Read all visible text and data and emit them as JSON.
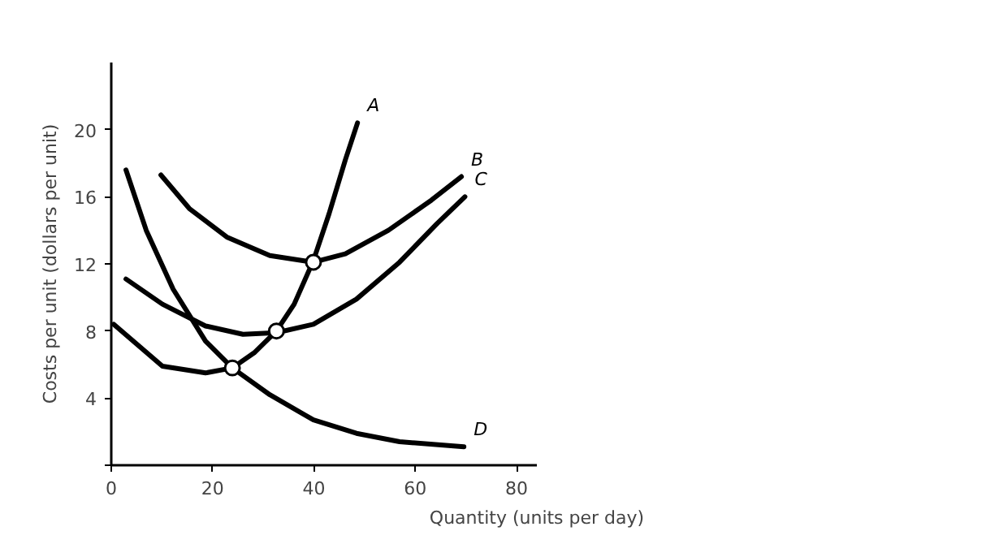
{
  "chart_data": {
    "type": "line",
    "xlabel": "Quantity (units per day)",
    "ylabel": "Costs per unit (dollars per unit)",
    "xlim": [
      0,
      84
    ],
    "ylim": [
      0,
      24
    ],
    "xticks": [
      0,
      20,
      40,
      60,
      80
    ],
    "yticks": [
      {
        "value": 0,
        "label": null
      },
      4,
      8,
      12,
      16,
      20
    ],
    "grid": false,
    "marker": "none",
    "series": [
      {
        "name": "A",
        "color": "#000000",
        "x": [
          0.5,
          10.1,
          18.6,
          23.9,
          28.2,
          32.6,
          36.1,
          39.9,
          43,
          46.2,
          48.6
        ],
        "values": [
          8.4,
          5.9,
          5.5,
          5.8,
          6.7,
          8.0,
          9.6,
          12.2,
          15,
          18.2,
          20.4
        ]
      },
      {
        "name": "B",
        "color": "#000000",
        "x": [
          9.8,
          15.4,
          22.8,
          31.3,
          39.9,
          46.2,
          54.7,
          63.2,
          69.1
        ],
        "values": [
          17.3,
          15.3,
          13.6,
          12.5,
          12.1,
          12.6,
          14.0,
          15.8,
          17.2
        ]
      },
      {
        "name": "C",
        "color": "#000000",
        "x": [
          2.9,
          10.1,
          18.6,
          26,
          32.6,
          39.9,
          48.4,
          56.9,
          64.3,
          69.8
        ],
        "values": [
          11.1,
          9.6,
          8.3,
          7.8,
          7.9,
          8.4,
          9.9,
          12.1,
          14.4,
          16.0
        ]
      },
      {
        "name": "D",
        "color": "#000000",
        "x": [
          2.9,
          6.9,
          12.2,
          18.6,
          23.9,
          31.3,
          39.9,
          48.4,
          56.9,
          69.6
        ],
        "values": [
          17.6,
          14.0,
          10.5,
          7.4,
          5.8,
          4.2,
          2.7,
          1.9,
          1.4,
          1.1
        ]
      },
      {
        "type": "scatter",
        "marker": "circle",
        "color": "#000000",
        "x": [
          23.9,
          32.6,
          39.9
        ],
        "values": [
          5.8,
          8.0,
          12.1
        ]
      }
    ]
  }
}
